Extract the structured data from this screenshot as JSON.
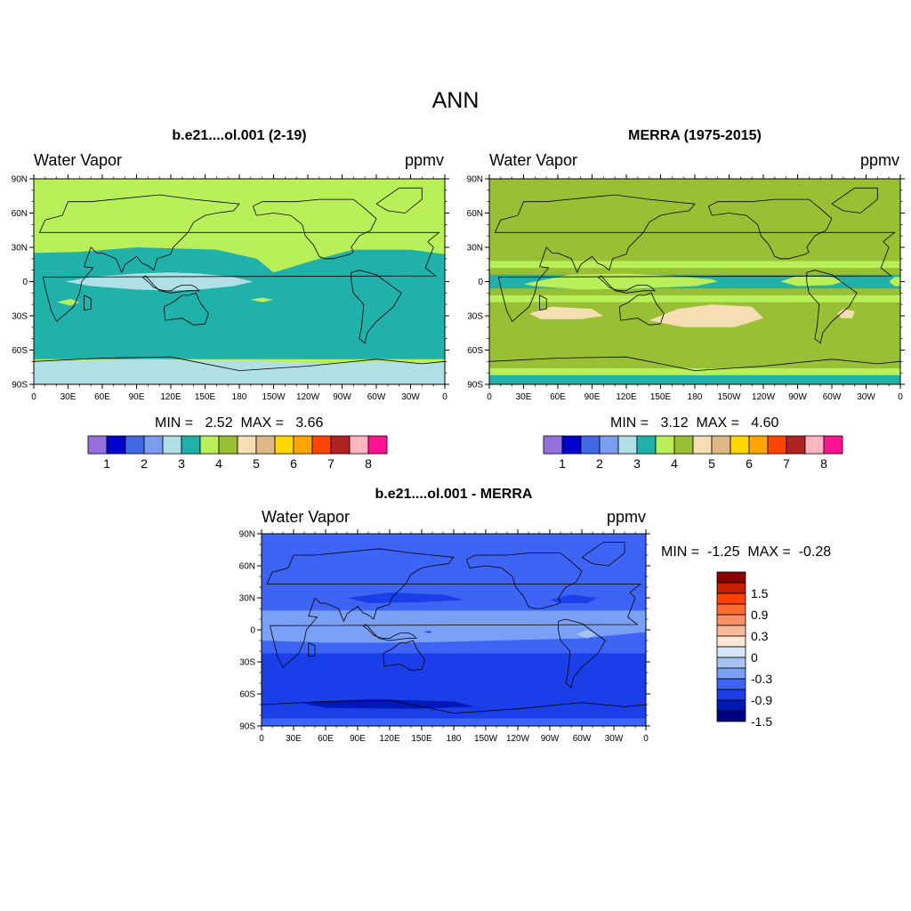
{
  "main_title": "ANN",
  "colors": {
    "levels_absolute": [
      "#9370db",
      "#0000cd",
      "#4169e1",
      "#7b9cf0",
      "#b0e0e6",
      "#20b2aa",
      "#b9f05a",
      "#99bf35",
      "#f5deb3",
      "#deb887",
      "#ffd700",
      "#ffa500",
      "#ff4500",
      "#b22222",
      "#ffb6c1",
      "#ff1493"
    ],
    "levels_diff": [
      "#000080",
      "#0018b8",
      "#1a3ee8",
      "#3d64f5",
      "#7aa0f5",
      "#a6c2f0",
      "#d5e6f8",
      "#fde6d5",
      "#f8b89a",
      "#fb9064",
      "#ff6a30",
      "#ff4000",
      "#c81e00",
      "#8b0000"
    ]
  },
  "panels": [
    {
      "id": "model",
      "title": "b.e21....ol.001 (2-19)",
      "left_label": "Water Vapor",
      "right_label": "ppmv",
      "minmax": "MIN =   2.52  MAX =   3.66",
      "background_level": 5,
      "regions": [
        {
          "level": 6,
          "pts": [
            [
              0,
              90
            ],
            [
              360,
              90
            ],
            [
              360,
              24
            ],
            [
              330,
              28
            ],
            [
              280,
              28
            ],
            [
              250,
              20
            ],
            [
              210,
              8
            ],
            [
              195,
              20
            ],
            [
              160,
              28
            ],
            [
              90,
              30
            ],
            [
              40,
              26
            ],
            [
              0,
              25
            ]
          ]
        },
        {
          "level": 6,
          "pts": [
            [
              0,
              -68
            ],
            [
              360,
              -68
            ],
            [
              360,
              -90
            ],
            [
              0,
              -90
            ]
          ]
        },
        {
          "level": 4,
          "pts": [
            [
              0,
              -70
            ],
            [
              40,
              -69
            ],
            [
              100,
              -68
            ],
            [
              160,
              -69
            ],
            [
              200,
              -70
            ],
            [
              240,
              -71
            ],
            [
              260,
              -72
            ],
            [
              300,
              -70
            ],
            [
              360,
              -71
            ],
            [
              360,
              -90
            ],
            [
              0,
              -90
            ]
          ]
        },
        {
          "level": 4,
          "pts": [
            [
              28,
              0
            ],
            [
              50,
              4
            ],
            [
              90,
              7
            ],
            [
              120,
              8
            ],
            [
              145,
              7
            ],
            [
              175,
              4
            ],
            [
              192,
              0
            ],
            [
              175,
              -4
            ],
            [
              145,
              -7
            ],
            [
              120,
              -8
            ],
            [
              90,
              -7
            ],
            [
              50,
              -4
            ]
          ]
        },
        {
          "level": 6,
          "pts": [
            [
              20,
              -18
            ],
            [
              32,
              -15
            ],
            [
              40,
              -18
            ],
            [
              32,
              -21
            ]
          ]
        },
        {
          "level": 6,
          "pts": [
            [
              190,
              -16
            ],
            [
              200,
              -14
            ],
            [
              210,
              -16
            ],
            [
              200,
              -18
            ]
          ]
        }
      ],
      "colorbar_labels": [
        "1",
        "2",
        "3",
        "4",
        "5",
        "6",
        "7",
        "8"
      ]
    },
    {
      "id": "obs",
      "title": "MERRA (1975-2015)",
      "left_label": "Water Vapor",
      "right_label": "ppmv",
      "minmax": "MIN =   3.12  MAX =   4.60",
      "background_level": 7,
      "regions": [
        {
          "level": 6,
          "pts": [
            [
              0,
              18
            ],
            [
              360,
              18
            ],
            [
              360,
              -18
            ],
            [
              0,
              -18
            ]
          ]
        },
        {
          "level": 7,
          "pts": [
            [
              0,
              12
            ],
            [
              360,
              12
            ],
            [
              360,
              -12
            ],
            [
              0,
              -12
            ]
          ]
        },
        {
          "level": 5,
          "pts": [
            [
              0,
              6
            ],
            [
              360,
              6
            ],
            [
              360,
              -6
            ],
            [
              0,
              -6
            ]
          ]
        },
        {
          "level": 6,
          "pts": [
            [
              30,
              -2
            ],
            [
              70,
              6
            ],
            [
              120,
              7
            ],
            [
              160,
              5
            ],
            [
              195,
              2
            ],
            [
              200,
              0
            ],
            [
              180,
              -4
            ],
            [
              130,
              -6
            ],
            [
              80,
              -7
            ],
            [
              40,
              -4
            ]
          ]
        },
        {
          "level": 6,
          "pts": [
            [
              255,
              0
            ],
            [
              270,
              5
            ],
            [
              300,
              4
            ],
            [
              310,
              0
            ],
            [
              300,
              -3
            ],
            [
              270,
              -4
            ]
          ]
        },
        {
          "level": 6,
          "pts": [
            [
              350,
              0
            ],
            [
              355,
              4
            ],
            [
              360,
              4
            ],
            [
              360,
              -4
            ],
            [
              355,
              -4
            ]
          ]
        },
        {
          "level": 8,
          "pts": [
            [
              35,
              -28
            ],
            [
              55,
              -22
            ],
            [
              90,
              -24
            ],
            [
              100,
              -30
            ],
            [
              80,
              -33
            ],
            [
              45,
              -33
            ]
          ]
        },
        {
          "level": 8,
          "pts": [
            [
              140,
              -34
            ],
            [
              165,
              -24
            ],
            [
              195,
              -20
            ],
            [
              230,
              -22
            ],
            [
              240,
              -32
            ],
            [
              215,
              -40
            ],
            [
              170,
              -40
            ]
          ]
        },
        {
          "level": 8,
          "pts": [
            [
              305,
              -28
            ],
            [
              310,
              -24
            ],
            [
              320,
              -26
            ],
            [
              318,
              -32
            ],
            [
              308,
              -32
            ]
          ]
        },
        {
          "level": 6,
          "pts": [
            [
              0,
              -76
            ],
            [
              360,
              -76
            ],
            [
              360,
              -90
            ],
            [
              0,
              -90
            ]
          ]
        },
        {
          "level": 5,
          "pts": [
            [
              0,
              -82
            ],
            [
              360,
              -82
            ],
            [
              360,
              -90
            ],
            [
              0,
              -90
            ]
          ]
        }
      ],
      "colorbar_labels": [
        "1",
        "2",
        "3",
        "4",
        "5",
        "6",
        "7",
        "8"
      ]
    },
    {
      "id": "diff",
      "title": "b.e21....ol.001 - MERRA",
      "left_label": "Water Vapor",
      "right_label": "ppmv",
      "minmax": "MIN =  -1.25  MAX =  -0.28",
      "background_level": 3,
      "regions": [
        {
          "level": 4,
          "pts": [
            [
              0,
              18
            ],
            [
              360,
              18
            ],
            [
              360,
              -2
            ],
            [
              300,
              -8
            ],
            [
              220,
              -10
            ],
            [
              140,
              -12
            ],
            [
              60,
              -12
            ],
            [
              0,
              -10
            ]
          ]
        },
        {
          "level": 2,
          "pts": [
            [
              0,
              -22
            ],
            [
              360,
              -22
            ],
            [
              360,
              -90
            ],
            [
              0,
              -90
            ]
          ]
        },
        {
          "level": 3,
          "pts": [
            [
              0,
              -83
            ],
            [
              360,
              -83
            ],
            [
              360,
              -90
            ],
            [
              0,
              -90
            ]
          ]
        },
        {
          "level": 1,
          "pts": [
            [
              35,
              -68
            ],
            [
              100,
              -65
            ],
            [
              180,
              -67
            ],
            [
              200,
              -72
            ],
            [
              140,
              -74
            ],
            [
              60,
              -73
            ]
          ]
        },
        {
          "level": 2,
          "pts": [
            [
              80,
              30
            ],
            [
              120,
              35
            ],
            [
              170,
              33
            ],
            [
              190,
              28
            ],
            [
              150,
              26
            ],
            [
              100,
              25
            ]
          ]
        },
        {
          "level": 2,
          "pts": [
            [
              270,
              28
            ],
            [
              290,
              33
            ],
            [
              315,
              30
            ],
            [
              305,
              25
            ],
            [
              280,
              25
            ]
          ]
        },
        {
          "level": 5,
          "pts": [
            [
              295,
              -4
            ],
            [
              305,
              0
            ],
            [
              315,
              -4
            ],
            [
              305,
              -8
            ]
          ]
        },
        {
          "level": 2,
          "pts": [
            [
              155,
              -26
            ],
            [
              162,
              -25
            ],
            [
              170,
              -27
            ],
            [
              162,
              -28
            ]
          ]
        },
        {
          "level": 2,
          "pts": [
            [
              152,
              -2
            ],
            [
              157,
              -1
            ],
            [
              160,
              -2
            ],
            [
              157,
              -3
            ]
          ]
        }
      ],
      "colorbar_labels": [
        "1.5",
        "0.9",
        "0.3",
        "0",
        "-0.3",
        "-0.9",
        "-1.5"
      ]
    }
  ],
  "axis": {
    "lat_labels": [
      "90N",
      "60N",
      "30N",
      "0",
      "30S",
      "60S",
      "90S"
    ],
    "lon_labels": [
      "0",
      "30E",
      "60E",
      "90E",
      "120E",
      "150E",
      "180",
      "150W",
      "120W",
      "90W",
      "60W",
      "30W",
      "0"
    ]
  }
}
